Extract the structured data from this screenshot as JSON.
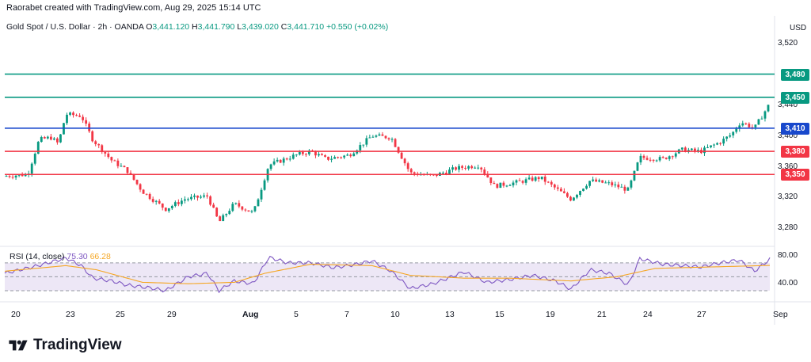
{
  "header": {
    "credit": "Raorabet created with TradingView.com, Aug 29, 2025 15:14 UTC"
  },
  "legend": {
    "symbol": "Gold Spot / U.S. Dollar · 2h · OANDA",
    "o_label": "O",
    "o": "3,441.120",
    "h_label": "H",
    "h": "3,441.790",
    "l_label": "L",
    "l": "3,439.020",
    "c_label": "C",
    "c": "3,441.710",
    "change": "+0.550 (+0.02%)"
  },
  "rsi_legend": {
    "label": "RSI (14, close)",
    "value1": "75.30",
    "value2": "66.28"
  },
  "price_axis": {
    "currency": "USD",
    "ticks": [
      "3,520",
      "3,440",
      "3,400",
      "3,360",
      "3,320",
      "3,280"
    ],
    "tick_values": [
      3520,
      3440,
      3400,
      3360,
      3320,
      3280
    ]
  },
  "rsi_axis": {
    "ticks": [
      "80.00",
      "40.00"
    ],
    "tick_values": [
      80,
      40
    ]
  },
  "levels": [
    {
      "label": "3,480",
      "value": 3480,
      "color": "#089981"
    },
    {
      "label": "3,450",
      "value": 3450,
      "color": "#089981"
    },
    {
      "label": "3,410",
      "value": 3410,
      "color": "#1848cc"
    },
    {
      "label": "3,380",
      "value": 3380,
      "color": "#f23645"
    },
    {
      "label": "3,350",
      "value": 3350,
      "color": "#f23645"
    }
  ],
  "time_axis": {
    "labels": [
      {
        "text": "20",
        "bold": false
      },
      {
        "text": "23",
        "bold": false
      },
      {
        "text": "25",
        "bold": false
      },
      {
        "text": "29",
        "bold": false
      },
      {
        "text": "Aug",
        "bold": true
      },
      {
        "text": "5",
        "bold": false
      },
      {
        "text": "7",
        "bold": false
      },
      {
        "text": "10",
        "bold": false
      },
      {
        "text": "13",
        "bold": false
      },
      {
        "text": "15",
        "bold": false
      },
      {
        "text": "19",
        "bold": false
      },
      {
        "text": "21",
        "bold": false
      },
      {
        "text": "24",
        "bold": false
      },
      {
        "text": "27",
        "bold": false
      },
      {
        "text": "Sep",
        "bold": false
      }
    ]
  },
  "brand": {
    "name": "TradingView"
  },
  "colors": {
    "up": "#089981",
    "down": "#f23645",
    "rsi": "#7e57c2",
    "rsi_ma": "#f5a623",
    "rsi_band": "#ede7f6"
  },
  "chart_data": [
    {
      "type": "candlestick",
      "title": "Gold Spot / U.S. Dollar · 2h · OANDA",
      "ylabel": "USD",
      "ylim": [
        3262,
        3535
      ],
      "anchors": [
        {
          "x": 0,
          "y": 3348
        },
        {
          "x": 0.03,
          "y": 3350
        },
        {
          "x": 0.045,
          "y": 3395
        },
        {
          "x": 0.06,
          "y": 3398
        },
        {
          "x": 0.07,
          "y": 3390
        },
        {
          "x": 0.08,
          "y": 3428
        },
        {
          "x": 0.1,
          "y": 3426
        },
        {
          "x": 0.115,
          "y": 3395
        },
        {
          "x": 0.14,
          "y": 3368
        },
        {
          "x": 0.16,
          "y": 3355
        },
        {
          "x": 0.18,
          "y": 3328
        },
        {
          "x": 0.21,
          "y": 3305
        },
        {
          "x": 0.235,
          "y": 3318
        },
        {
          "x": 0.265,
          "y": 3322
        },
        {
          "x": 0.28,
          "y": 3288
        },
        {
          "x": 0.3,
          "y": 3312
        },
        {
          "x": 0.325,
          "y": 3300
        },
        {
          "x": 0.345,
          "y": 3362
        },
        {
          "x": 0.38,
          "y": 3375
        },
        {
          "x": 0.4,
          "y": 3380
        },
        {
          "x": 0.42,
          "y": 3370
        },
        {
          "x": 0.45,
          "y": 3375
        },
        {
          "x": 0.48,
          "y": 3400
        },
        {
          "x": 0.505,
          "y": 3398
        },
        {
          "x": 0.53,
          "y": 3352
        },
        {
          "x": 0.56,
          "y": 3348
        },
        {
          "x": 0.59,
          "y": 3358
        },
        {
          "x": 0.62,
          "y": 3362
        },
        {
          "x": 0.64,
          "y": 3335
        },
        {
          "x": 0.67,
          "y": 3340
        },
        {
          "x": 0.7,
          "y": 3346
        },
        {
          "x": 0.72,
          "y": 3332
        },
        {
          "x": 0.74,
          "y": 3318
        },
        {
          "x": 0.765,
          "y": 3342
        },
        {
          "x": 0.79,
          "y": 3338
        },
        {
          "x": 0.815,
          "y": 3330
        },
        {
          "x": 0.83,
          "y": 3372
        },
        {
          "x": 0.86,
          "y": 3370
        },
        {
          "x": 0.885,
          "y": 3382
        },
        {
          "x": 0.91,
          "y": 3380
        },
        {
          "x": 0.935,
          "y": 3392
        },
        {
          "x": 0.95,
          "y": 3402
        },
        {
          "x": 0.962,
          "y": 3418
        },
        {
          "x": 0.98,
          "y": 3410
        },
        {
          "x": 1.0,
          "y": 3442
        }
      ]
    },
    {
      "type": "line",
      "title": "RSI (14, close)",
      "ylim": [
        22,
        88
      ],
      "series": [
        {
          "name": "RSI",
          "anchors": [
            {
              "x": 0,
              "y": 55
            },
            {
              "x": 0.04,
              "y": 65
            },
            {
              "x": 0.08,
              "y": 77
            },
            {
              "x": 0.1,
              "y": 66
            },
            {
              "x": 0.115,
              "y": 48
            },
            {
              "x": 0.14,
              "y": 44
            },
            {
              "x": 0.16,
              "y": 38
            },
            {
              "x": 0.19,
              "y": 34
            },
            {
              "x": 0.21,
              "y": 30
            },
            {
              "x": 0.24,
              "y": 50
            },
            {
              "x": 0.265,
              "y": 55
            },
            {
              "x": 0.28,
              "y": 30
            },
            {
              "x": 0.3,
              "y": 44
            },
            {
              "x": 0.325,
              "y": 40
            },
            {
              "x": 0.345,
              "y": 78
            },
            {
              "x": 0.37,
              "y": 70
            },
            {
              "x": 0.4,
              "y": 70
            },
            {
              "x": 0.43,
              "y": 63
            },
            {
              "x": 0.46,
              "y": 68
            },
            {
              "x": 0.48,
              "y": 73
            },
            {
              "x": 0.505,
              "y": 58
            },
            {
              "x": 0.53,
              "y": 33
            },
            {
              "x": 0.56,
              "y": 40
            },
            {
              "x": 0.6,
              "y": 57
            },
            {
              "x": 0.63,
              "y": 42
            },
            {
              "x": 0.66,
              "y": 46
            },
            {
              "x": 0.69,
              "y": 52
            },
            {
              "x": 0.72,
              "y": 44
            },
            {
              "x": 0.74,
              "y": 32
            },
            {
              "x": 0.765,
              "y": 60
            },
            {
              "x": 0.79,
              "y": 55
            },
            {
              "x": 0.815,
              "y": 38
            },
            {
              "x": 0.83,
              "y": 76
            },
            {
              "x": 0.86,
              "y": 68
            },
            {
              "x": 0.885,
              "y": 66
            },
            {
              "x": 0.91,
              "y": 64
            },
            {
              "x": 0.935,
              "y": 70
            },
            {
              "x": 0.96,
              "y": 74
            },
            {
              "x": 0.98,
              "y": 58
            },
            {
              "x": 1.0,
              "y": 75.3
            }
          ]
        },
        {
          "name": "RSI-based MA",
          "anchors": [
            {
              "x": 0,
              "y": 58
            },
            {
              "x": 0.08,
              "y": 66
            },
            {
              "x": 0.12,
              "y": 60
            },
            {
              "x": 0.18,
              "y": 42
            },
            {
              "x": 0.24,
              "y": 40
            },
            {
              "x": 0.3,
              "y": 42
            },
            {
              "x": 0.34,
              "y": 55
            },
            {
              "x": 0.4,
              "y": 68
            },
            {
              "x": 0.48,
              "y": 66
            },
            {
              "x": 0.53,
              "y": 52
            },
            {
              "x": 0.6,
              "y": 48
            },
            {
              "x": 0.66,
              "y": 48
            },
            {
              "x": 0.74,
              "y": 44
            },
            {
              "x": 0.8,
              "y": 50
            },
            {
              "x": 0.85,
              "y": 62
            },
            {
              "x": 0.92,
              "y": 64
            },
            {
              "x": 1.0,
              "y": 66.28
            }
          ]
        }
      ],
      "bands": [
        70,
        50,
        30
      ]
    }
  ]
}
